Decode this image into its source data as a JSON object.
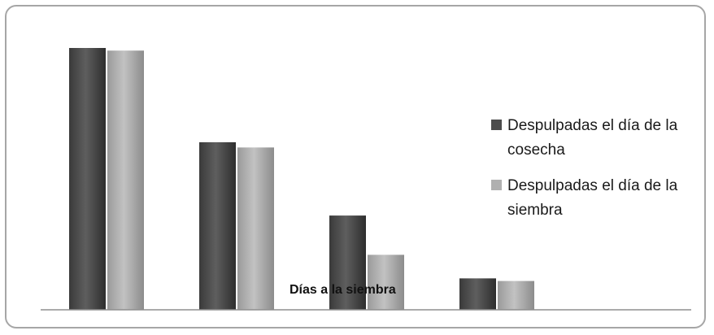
{
  "chart_data": {
    "type": "bar",
    "categories": [
      "",
      "",
      "",
      ""
    ],
    "series": [
      {
        "name": "Despulpadas el día de la cosecha",
        "values": [
          100,
          64,
          36,
          12
        ],
        "color": "#4d4d4d"
      },
      {
        "name": "Despulpadas el día de la siembra",
        "values": [
          99,
          62,
          21,
          11
        ],
        "color": "#a6a6a6"
      }
    ],
    "title": "",
    "xlabel": "Días a la siembra",
    "ylabel": "",
    "ylim": [
      0,
      100
    ],
    "grid": false,
    "legend_position": "right"
  }
}
